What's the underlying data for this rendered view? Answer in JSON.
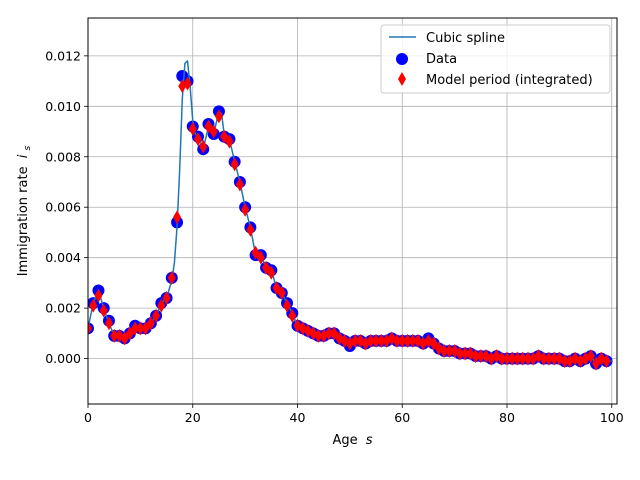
{
  "chart_data": {
    "type": "scatter",
    "xlabel": "Age",
    "xlabel_symbol": "s",
    "ylabel": "Immigration rate",
    "ylabel_symbol": "i",
    "ylabel_subscript": "s",
    "xlim": [
      0,
      101
    ],
    "ylim": [
      -0.0018,
      0.0135
    ],
    "xticks": [
      0,
      20,
      40,
      60,
      80,
      100
    ],
    "yticks": [
      0.0,
      0.002,
      0.004,
      0.006,
      0.008,
      0.01,
      0.012
    ],
    "xtick_labels": [
      "0",
      "20",
      "40",
      "60",
      "80",
      "100"
    ],
    "ytick_labels": [
      "0.000",
      "0.002",
      "0.004",
      "0.006",
      "0.008",
      "0.010",
      "0.012"
    ],
    "grid": true,
    "legend_position": "top-right",
    "legend": [
      "Cubic spline",
      "Data",
      "Model period (integrated)"
    ],
    "colors": {
      "spline": "#1f77b4",
      "data_face": "#0000ff",
      "data_edge": "#0000ff",
      "model": "#ff0000",
      "grid": "#b0b0b0"
    },
    "series": [
      {
        "name": "Data",
        "kind": "scatter-circle",
        "x": [
          0,
          1,
          2,
          3,
          4,
          5,
          6,
          7,
          8,
          9,
          10,
          11,
          12,
          13,
          14,
          15,
          16,
          17,
          18,
          19,
          20,
          21,
          22,
          23,
          24,
          25,
          26,
          27,
          28,
          29,
          30,
          31,
          32,
          33,
          34,
          35,
          36,
          37,
          38,
          39,
          40,
          41,
          42,
          43,
          44,
          45,
          46,
          47,
          48,
          49,
          50,
          51,
          52,
          53,
          54,
          55,
          56,
          57,
          58,
          59,
          60,
          61,
          62,
          63,
          64,
          65,
          66,
          67,
          68,
          69,
          70,
          71,
          72,
          73,
          74,
          75,
          76,
          77,
          78,
          79,
          80,
          81,
          82,
          83,
          84,
          85,
          86,
          87,
          88,
          89,
          90,
          91,
          92,
          93,
          94,
          95,
          96,
          97,
          98,
          99
        ],
        "y": [
          0.0012,
          0.0022,
          0.0027,
          0.002,
          0.0015,
          0.0009,
          0.0009,
          0.0008,
          0.001,
          0.0013,
          0.0012,
          0.0012,
          0.0014,
          0.0017,
          0.0022,
          0.0024,
          0.0032,
          0.0054,
          0.0112,
          0.011,
          0.0092,
          0.0088,
          0.0083,
          0.0093,
          0.0089,
          0.0098,
          0.0088,
          0.0087,
          0.0078,
          0.007,
          0.006,
          0.0052,
          0.0041,
          0.0041,
          0.0036,
          0.0035,
          0.0028,
          0.0026,
          0.0022,
          0.0018,
          0.0013,
          0.0012,
          0.0011,
          0.001,
          0.0009,
          0.0009,
          0.001,
          0.001,
          0.0008,
          0.0007,
          0.0005,
          0.0007,
          0.0007,
          0.0006,
          0.0007,
          0.0007,
          0.0007,
          0.0007,
          0.0008,
          0.0007,
          0.0007,
          0.0007,
          0.0007,
          0.0007,
          0.0006,
          0.0008,
          0.0006,
          0.0004,
          0.0003,
          0.0003,
          0.0003,
          0.0002,
          0.0002,
          0.0002,
          0.0001,
          0.0001,
          0.0001,
          0.0,
          0.0001,
          0.0,
          0.0,
          0.0,
          0.0,
          0.0,
          0.0,
          0.0,
          0.0001,
          0.0,
          0.0,
          0.0,
          0.0,
          -0.0001,
          -0.0001,
          0.0,
          -0.0001,
          0.0,
          0.0001,
          -0.0002,
          0.0,
          -0.0001
        ]
      },
      {
        "name": "Model period (integrated)",
        "kind": "scatter-diamond",
        "x": [
          0,
          1,
          2,
          3,
          4,
          5,
          6,
          7,
          8,
          9,
          10,
          11,
          12,
          13,
          14,
          15,
          16,
          17,
          18,
          19,
          20,
          21,
          22,
          23,
          24,
          25,
          26,
          27,
          28,
          29,
          30,
          31,
          32,
          33,
          34,
          35,
          36,
          37,
          38,
          39,
          40,
          41,
          42,
          43,
          44,
          45,
          46,
          47,
          48,
          49,
          50,
          51,
          52,
          53,
          54,
          55,
          56,
          57,
          58,
          59,
          60,
          61,
          62,
          63,
          64,
          65,
          66,
          67,
          68,
          69,
          70,
          71,
          72,
          73,
          74,
          75,
          76,
          77,
          78,
          79,
          80,
          81,
          82,
          83,
          84,
          85,
          86,
          87,
          88,
          89,
          90,
          91,
          92,
          93,
          94,
          95,
          96,
          97,
          98,
          99
        ],
        "y": [
          0.0012,
          0.0021,
          0.0025,
          0.0019,
          0.0014,
          0.0009,
          0.0009,
          0.0008,
          0.001,
          0.0012,
          0.0012,
          0.0012,
          0.0014,
          0.0017,
          0.0021,
          0.0024,
          0.0032,
          0.0056,
          0.0108,
          0.0109,
          0.0091,
          0.0087,
          0.0084,
          0.0092,
          0.009,
          0.0096,
          0.0088,
          0.0086,
          0.0077,
          0.0069,
          0.0059,
          0.0051,
          0.0042,
          0.004,
          0.0036,
          0.0034,
          0.0028,
          0.0026,
          0.0021,
          0.0017,
          0.0013,
          0.0012,
          0.0011,
          0.001,
          0.0009,
          0.0009,
          0.001,
          0.001,
          0.0008,
          0.0007,
          0.0006,
          0.0007,
          0.0007,
          0.0006,
          0.0007,
          0.0007,
          0.0007,
          0.0007,
          0.0008,
          0.0007,
          0.0007,
          0.0007,
          0.0007,
          0.0007,
          0.0006,
          0.0007,
          0.0006,
          0.0004,
          0.0003,
          0.0003,
          0.0003,
          0.0002,
          0.0002,
          0.0002,
          0.0001,
          0.0001,
          0.0001,
          0.0,
          0.0001,
          0.0,
          0.0,
          0.0,
          0.0,
          0.0,
          0.0,
          0.0,
          0.0001,
          0.0,
          0.0,
          0.0,
          0.0,
          -0.0001,
          -0.0001,
          0.0,
          -0.0001,
          0.0,
          0.0001,
          -0.0002,
          0.0,
          -0.0001
        ]
      },
      {
        "name": "Cubic spline",
        "kind": "line",
        "x": [
          0,
          1,
          2,
          3,
          4,
          5,
          6,
          7,
          8,
          9,
          10,
          11,
          12,
          13,
          14,
          15,
          16,
          16.5,
          17,
          17.5,
          18,
          18.5,
          19,
          19.5,
          20,
          20.5,
          21,
          22,
          23,
          24,
          25,
          25.5,
          26,
          27,
          28,
          29,
          30,
          31,
          32,
          33,
          34,
          35,
          36,
          37,
          38,
          39,
          40,
          41,
          42,
          43,
          44,
          45,
          46,
          47,
          48,
          49,
          50,
          51,
          52,
          53,
          54,
          55,
          56,
          57,
          58,
          59,
          60,
          61,
          62,
          63,
          64,
          65,
          66,
          67,
          68,
          69,
          70,
          71,
          72,
          73,
          74,
          75,
          76,
          77,
          78,
          79,
          80,
          81,
          82,
          83,
          84,
          85,
          86,
          87,
          88,
          89,
          90,
          91,
          92,
          93,
          94,
          95,
          96,
          97,
          98,
          99,
          100
        ],
        "y": [
          0.0012,
          0.0022,
          0.0027,
          0.002,
          0.0014,
          0.0009,
          0.0009,
          0.0008,
          0.001,
          0.0013,
          0.0012,
          0.0012,
          0.0014,
          0.0017,
          0.0022,
          0.0024,
          0.0031,
          0.0038,
          0.0052,
          0.0075,
          0.0103,
          0.0117,
          0.0118,
          0.0108,
          0.0094,
          0.0089,
          0.0088,
          0.0083,
          0.0092,
          0.0089,
          0.0098,
          0.0097,
          0.0089,
          0.0087,
          0.0078,
          0.007,
          0.006,
          0.0052,
          0.0041,
          0.0041,
          0.0036,
          0.0035,
          0.0028,
          0.0026,
          0.0022,
          0.0018,
          0.0013,
          0.0012,
          0.0011,
          0.001,
          0.0009,
          0.0009,
          0.001,
          0.001,
          0.0008,
          0.0007,
          0.0005,
          0.0007,
          0.0007,
          0.0006,
          0.0007,
          0.0007,
          0.0007,
          0.0007,
          0.0008,
          0.0007,
          0.0007,
          0.0007,
          0.0007,
          0.0007,
          0.0006,
          0.0008,
          0.0006,
          0.0004,
          0.0003,
          0.0003,
          0.0003,
          0.0002,
          0.0002,
          0.0002,
          0.0001,
          0.0001,
          0.0001,
          0.0,
          0.0001,
          0.0,
          0.0,
          0.0,
          0.0,
          0.0,
          0.0,
          0.0,
          0.0001,
          0.0,
          0.0,
          0.0,
          0.0,
          -0.0001,
          -0.0001,
          0.0,
          -0.0001,
          0.0,
          0.0001,
          -0.0002,
          0.0,
          -0.0001,
          -0.0001
        ]
      }
    ]
  }
}
